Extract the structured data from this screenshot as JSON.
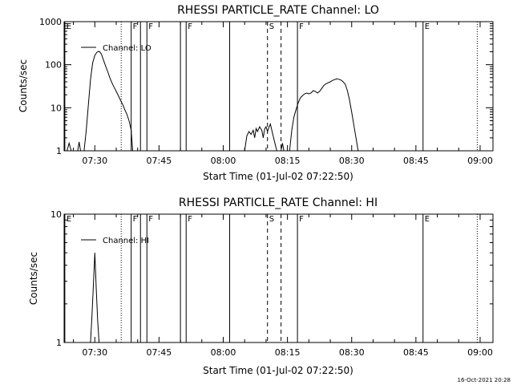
{
  "chart_data": [
    {
      "type": "line",
      "title": "RHESSI PARTICLE_RATE Channel: LO",
      "xlabel": "Start Time (01-Jul-02 07:22:50)",
      "ylabel": "Counts/sec",
      "y_scale": "log",
      "ylim": [
        1,
        1000
      ],
      "xlim": [
        "07:22:50",
        "09:03:00"
      ],
      "x_ticks": [
        "07:30",
        "07:45",
        "08:00",
        "08:15",
        "08:30",
        "08:45",
        "09:00"
      ],
      "y_ticks": [
        "1",
        "10",
        "100",
        "1000"
      ],
      "grid": false,
      "legend_position": "top-left",
      "series": [
        {
          "name": "Channel: LO",
          "points": [
            [
              "07:23:30",
              1.0
            ],
            [
              "07:24:00",
              1.5
            ],
            [
              "07:24:30",
              1.0
            ],
            [
              "07:26:00",
              1.0
            ],
            [
              "07:26:20",
              1.6
            ],
            [
              "07:26:40",
              1.0
            ],
            [
              "07:27:30",
              1.0
            ],
            [
              "07:28:00",
              3
            ],
            [
              "07:28:30",
              12
            ],
            [
              "07:29:00",
              45
            ],
            [
              "07:29:30",
              110
            ],
            [
              "07:30:00",
              165
            ],
            [
              "07:30:30",
              195
            ],
            [
              "07:31:00",
              205
            ],
            [
              "07:31:30",
              180
            ],
            [
              "07:32:00",
              130
            ],
            [
              "07:32:30",
              95
            ],
            [
              "07:33:00",
              70
            ],
            [
              "07:33:30",
              50
            ],
            [
              "07:34:00",
              38
            ],
            [
              "07:34:30",
              30
            ],
            [
              "07:35:00",
              24
            ],
            [
              "07:35:30",
              19
            ],
            [
              "07:36:00",
              15
            ],
            [
              "07:36:30",
              12
            ],
            [
              "07:37:00",
              9
            ],
            [
              "07:37:30",
              7
            ],
            [
              "07:38:00",
              5
            ],
            [
              "07:38:30",
              3
            ],
            [
              "07:38:50",
              1.0
            ],
            [
              "08:05:00",
              1.0
            ],
            [
              "08:05:30",
              2.2
            ],
            [
              "08:06:00",
              2.8
            ],
            [
              "08:06:30",
              2.4
            ],
            [
              "08:07:00",
              3.0
            ],
            [
              "08:07:20",
              2.0
            ],
            [
              "08:07:40",
              3.3
            ],
            [
              "08:08:00",
              2.8
            ],
            [
              "08:08:30",
              3.6
            ],
            [
              "08:09:00",
              3.0
            ],
            [
              "08:09:20",
              2.0
            ],
            [
              "08:09:40",
              3.2
            ],
            [
              "08:10:00",
              3.6
            ],
            [
              "08:10:20",
              2.8
            ],
            [
              "08:10:40",
              3.5
            ],
            [
              "08:11:00",
              4.2
            ],
            [
              "08:11:30",
              2.6
            ],
            [
              "08:12:00",
              1.6
            ],
            [
              "08:12:30",
              1.0
            ],
            [
              "08:13:30",
              1.0
            ],
            [
              "08:13:50",
              1.5
            ],
            [
              "08:14:10",
              1.0
            ],
            [
              "08:15:30",
              1.0
            ],
            [
              "08:16:00",
              3
            ],
            [
              "08:16:30",
              6
            ],
            [
              "08:17:00",
              9
            ],
            [
              "08:17:30",
              13
            ],
            [
              "08:18:00",
              17
            ],
            [
              "08:18:30",
              19
            ],
            [
              "08:19:00",
              21
            ],
            [
              "08:19:30",
              22
            ],
            [
              "08:20:00",
              21
            ],
            [
              "08:20:30",
              22
            ],
            [
              "08:21:00",
              25
            ],
            [
              "08:21:30",
              24
            ],
            [
              "08:22:00",
              22
            ],
            [
              "08:22:30",
              24
            ],
            [
              "08:23:00",
              28
            ],
            [
              "08:23:30",
              33
            ],
            [
              "08:24:00",
              36
            ],
            [
              "08:24:30",
              38
            ],
            [
              "08:25:00",
              40
            ],
            [
              "08:25:30",
              43
            ],
            [
              "08:26:00",
              45
            ],
            [
              "08:26:30",
              47
            ],
            [
              "08:27:00",
              46
            ],
            [
              "08:27:30",
              44
            ],
            [
              "08:28:00",
              40
            ],
            [
              "08:28:30",
              35
            ],
            [
              "08:29:00",
              25
            ],
            [
              "08:29:30",
              15
            ],
            [
              "08:30:00",
              8
            ],
            [
              "08:30:30",
              4
            ],
            [
              "08:31:00",
              2
            ],
            [
              "08:31:30",
              1.0
            ]
          ]
        }
      ],
      "events": [
        {
          "time": "07:23:00",
          "style": "solid",
          "label": "E"
        },
        {
          "time": "07:36:10",
          "style": "dotted",
          "label": ""
        },
        {
          "time": "07:38:30",
          "style": "solid",
          "label": "F"
        },
        {
          "time": "07:40:40",
          "style": "solid",
          "label": ""
        },
        {
          "time": "07:42:10",
          "style": "solid",
          "label": "F"
        },
        {
          "time": "07:50:00",
          "style": "solid",
          "label": ""
        },
        {
          "time": "07:51:20",
          "style": "solid",
          "label": "F"
        },
        {
          "time": "08:01:30",
          "style": "solid",
          "label": ""
        },
        {
          "time": "08:10:20",
          "style": "dashed",
          "label": "S"
        },
        {
          "time": "08:13:30",
          "style": "dashed",
          "label": ""
        },
        {
          "time": "08:17:20",
          "style": "solid",
          "label": "F"
        },
        {
          "time": "08:46:40",
          "style": "solid",
          "label": "E"
        },
        {
          "time": "08:59:20",
          "style": "dotted",
          "label": ""
        }
      ]
    },
    {
      "type": "line",
      "title": "RHESSI PARTICLE_RATE Channel: HI",
      "xlabel": "Start Time (01-Jul-02 07:22:50)",
      "ylabel": "Counts/sec",
      "y_scale": "log",
      "ylim": [
        1,
        10
      ],
      "xlim": [
        "07:22:50",
        "09:03:00"
      ],
      "x_ticks": [
        "07:30",
        "07:45",
        "08:00",
        "08:15",
        "08:30",
        "08:45",
        "09:00"
      ],
      "y_ticks": [
        "1",
        "10"
      ],
      "grid": false,
      "legend_position": "top-left",
      "series": [
        {
          "name": "Channel: HI",
          "points": [
            [
              "07:29:00",
              1.0
            ],
            [
              "07:29:20",
              1.6
            ],
            [
              "07:29:40",
              2.8
            ],
            [
              "07:30:00",
              5.0
            ],
            [
              "07:30:20",
              2.6
            ],
            [
              "07:30:40",
              1.5
            ],
            [
              "07:31:00",
              1.0
            ]
          ]
        }
      ],
      "events": [
        {
          "time": "07:23:00",
          "style": "solid",
          "label": "E"
        },
        {
          "time": "07:36:10",
          "style": "dotted",
          "label": ""
        },
        {
          "time": "07:38:30",
          "style": "solid",
          "label": "F"
        },
        {
          "time": "07:40:40",
          "style": "solid",
          "label": ""
        },
        {
          "time": "07:42:10",
          "style": "solid",
          "label": "F"
        },
        {
          "time": "07:50:00",
          "style": "solid",
          "label": ""
        },
        {
          "time": "07:51:20",
          "style": "solid",
          "label": "F"
        },
        {
          "time": "08:01:30",
          "style": "solid",
          "label": ""
        },
        {
          "time": "08:10:20",
          "style": "dashed",
          "label": "S"
        },
        {
          "time": "08:13:30",
          "style": "dashed",
          "label": ""
        },
        {
          "time": "08:17:20",
          "style": "solid",
          "label": "F"
        },
        {
          "time": "08:46:40",
          "style": "solid",
          "label": "E"
        },
        {
          "time": "08:59:20",
          "style": "dotted",
          "label": ""
        }
      ]
    }
  ],
  "footer": {
    "timestamp": "16-Oct-2021 20:28"
  }
}
